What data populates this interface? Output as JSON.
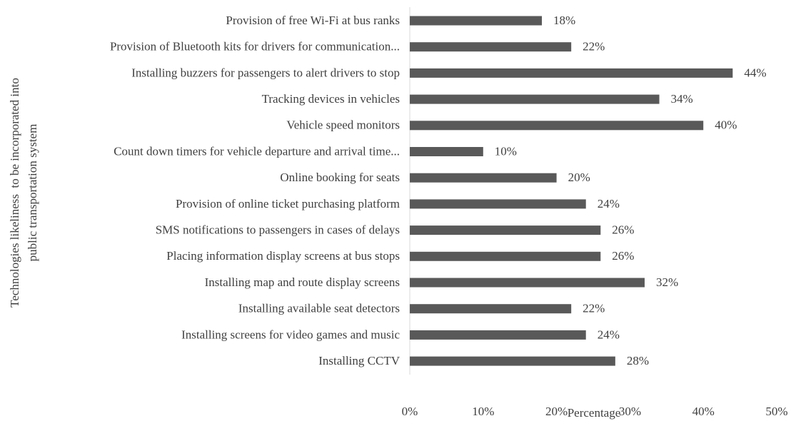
{
  "chart_data": {
    "type": "hbar",
    "categories": [
      "Provision of free Wi-Fi at bus ranks",
      "Provision of Bluetooth kits for drivers for communication...",
      "Installing buzzers for passengers to alert drivers to stop",
      "Tracking devices in vehicles",
      "Vehicle speed monitors",
      "Count down timers for vehicle departure and arrival time...",
      "Online booking for seats",
      "Provision of online ticket purchasing platform",
      "SMS notifications to passengers in cases of delays",
      "Placing information display screens at bus stops",
      "Installing map and route display screens",
      "Installing available seat detectors",
      "Installing screens for video games and music",
      "Installing CCTV"
    ],
    "values": [
      18,
      22,
      44,
      34,
      40,
      10,
      20,
      24,
      26,
      26,
      32,
      22,
      24,
      28
    ],
    "value_labels": [
      "18%",
      "22%",
      "44%",
      "34%",
      "40%",
      "10%",
      "20%",
      "24%",
      "26%",
      "26%",
      "32%",
      "22%",
      "24%",
      "28%"
    ],
    "color": "#595959",
    "xlim": [
      0,
      50
    ],
    "xticks": [
      {
        "value": 0,
        "label": "0%"
      },
      {
        "value": 10,
        "label": "10%"
      },
      {
        "value": 20,
        "label": "20%"
      },
      {
        "value": 30,
        "label": "30%"
      },
      {
        "value": 40,
        "label": "40%"
      },
      {
        "value": 50,
        "label": "50%"
      }
    ],
    "xlabel": "Percentage",
    "ylabel": [
      "Technologies likeliness  to be incorporated into",
      "public transportation system"
    ]
  }
}
